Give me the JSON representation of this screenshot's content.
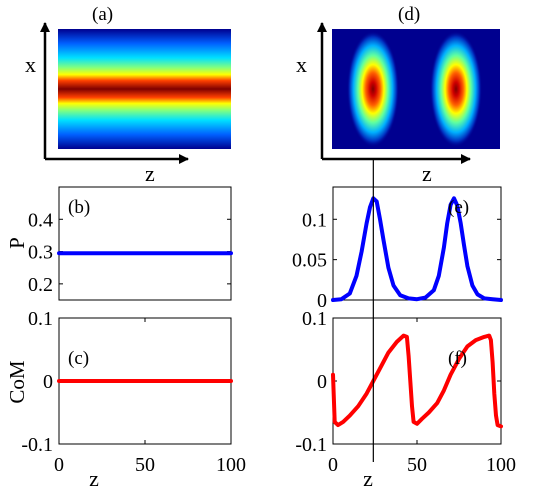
{
  "panels": {
    "a": {
      "label": "(a)",
      "xlabel": "z",
      "ylabel": "x"
    },
    "d": {
      "label": "(d)",
      "xlabel": "z",
      "ylabel": "x"
    }
  },
  "chart_data": [
    {
      "id": "b",
      "type": "line",
      "label": "(b)",
      "ylabel": "P",
      "xlabel": "",
      "xlim": [
        0,
        100
      ],
      "ylim": [
        0.15,
        0.5
      ],
      "yticks": [
        0.2,
        0.3,
        0.4
      ],
      "ytick_labels": [
        "0.2",
        "0.3",
        "0.4"
      ],
      "xticks": [],
      "xtick_labels": [],
      "color": "#0000ff",
      "series": [
        {
          "x": [
            0,
            100
          ],
          "y": [
            0.295,
            0.295
          ]
        }
      ]
    },
    {
      "id": "c",
      "type": "line",
      "label": "(c)",
      "ylabel": "CoM",
      "xlabel": "z",
      "xlim": [
        0,
        100
      ],
      "ylim": [
        -0.1,
        0.1
      ],
      "yticks": [
        -0.1,
        0,
        0.1
      ],
      "ytick_labels": [
        "-0.1",
        "0",
        "0.1"
      ],
      "xticks": [
        0,
        50,
        100
      ],
      "xtick_labels": [
        "0",
        "50",
        "100"
      ],
      "color": "#ff0000",
      "series": [
        {
          "x": [
            0,
            100
          ],
          "y": [
            0,
            0
          ]
        }
      ]
    },
    {
      "id": "e",
      "type": "line",
      "label": "(e)",
      "ylabel": "",
      "xlabel": "",
      "xlim": [
        0,
        100
      ],
      "ylim": [
        0,
        0.14
      ],
      "yticks": [
        0,
        0.05,
        0.1
      ],
      "ytick_labels": [
        "0",
        "0.05",
        "0.1"
      ],
      "xticks": [],
      "xtick_labels": [],
      "color": "#0000ff",
      "series": [
        {
          "x": [
            0,
            5,
            10,
            14,
            17,
            20,
            22,
            24,
            26,
            28,
            30,
            33,
            36,
            40,
            45,
            50,
            55,
            60,
            63,
            66,
            68,
            70,
            72,
            74,
            76,
            78,
            80,
            83,
            86,
            90,
            95,
            100
          ],
          "y": [
            0,
            0.001,
            0.008,
            0.03,
            0.06,
            0.095,
            0.115,
            0.126,
            0.122,
            0.1,
            0.075,
            0.04,
            0.018,
            0.006,
            0.002,
            0.001,
            0.003,
            0.012,
            0.03,
            0.065,
            0.095,
            0.118,
            0.126,
            0.117,
            0.095,
            0.068,
            0.042,
            0.018,
            0.007,
            0.002,
            0.001,
            0
          ]
        }
      ]
    },
    {
      "id": "f",
      "type": "line",
      "label": "(f)",
      "ylabel": "",
      "xlabel": "z",
      "xlim": [
        0,
        100
      ],
      "ylim": [
        -0.1,
        0.1
      ],
      "yticks": [
        -0.1,
        0,
        0.1
      ],
      "ytick_labels": [
        "-0.1",
        "0",
        "0.1"
      ],
      "xticks": [
        0,
        50,
        100
      ],
      "xtick_labels": [
        "0",
        "50",
        "100"
      ],
      "color": "#ff0000",
      "series": [
        {
          "x": [
            0,
            1,
            3,
            6,
            10,
            15,
            20,
            24,
            28,
            33,
            38,
            42,
            44,
            45,
            46,
            47,
            48,
            50,
            53,
            57,
            62,
            66,
            70,
            75,
            80,
            85,
            90,
            93,
            94,
            95,
            96,
            97,
            98,
            100
          ],
          "y": [
            0.01,
            -0.065,
            -0.07,
            -0.065,
            -0.055,
            -0.04,
            -0.02,
            0.0,
            0.02,
            0.045,
            0.062,
            0.072,
            0.07,
            0.04,
            0.0,
            -0.04,
            -0.065,
            -0.068,
            -0.06,
            -0.05,
            -0.035,
            -0.015,
            0.01,
            0.035,
            0.055,
            0.065,
            0.07,
            0.072,
            0.065,
            0.03,
            -0.02,
            -0.055,
            -0.07,
            -0.072
          ]
        }
      ]
    }
  ],
  "marker": {
    "z": 24
  }
}
